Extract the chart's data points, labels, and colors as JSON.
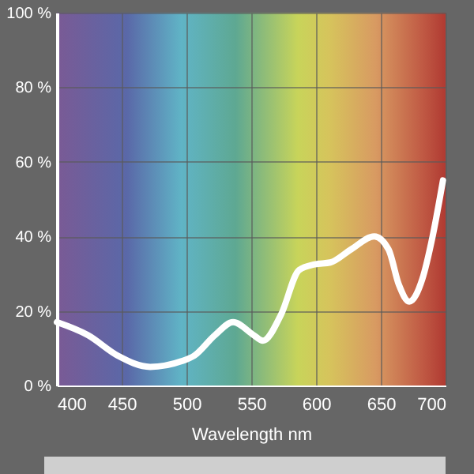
{
  "chart_data": {
    "type": "line",
    "xlabel": "Wavelength nm",
    "x": [
      400,
      424,
      447,
      472,
      496,
      506,
      522,
      536,
      552,
      559,
      573,
      587,
      599,
      611,
      627,
      645,
      656,
      664,
      672,
      682,
      690,
      698
    ],
    "series": [
      {
        "color": "#ffffff",
        "values": [
          17,
          13.5,
          8,
          5,
          6.5,
          8,
          13.5,
          17,
          13.5,
          12,
          19,
          31,
          32.5,
          33,
          36.5,
          40,
          36.5,
          27,
          22.5,
          28.5,
          40,
          55
        ]
      }
    ],
    "xlim": [
      400,
      700
    ],
    "xticks": [
      400,
      450,
      500,
      550,
      600,
      650,
      700
    ],
    "ylim": [
      0,
      100
    ],
    "yticks": [
      {
        "value": 0,
        "label": "0 %"
      },
      {
        "value": 20,
        "label": "20 %"
      },
      {
        "value": 40,
        "label": "40 %"
      },
      {
        "value": 60,
        "label": "60 %"
      },
      {
        "value": 80,
        "label": "80 %"
      },
      {
        "value": 100,
        "label": "100 %"
      }
    ],
    "grid": true,
    "marker": "none",
    "line_style": "solid"
  }
}
